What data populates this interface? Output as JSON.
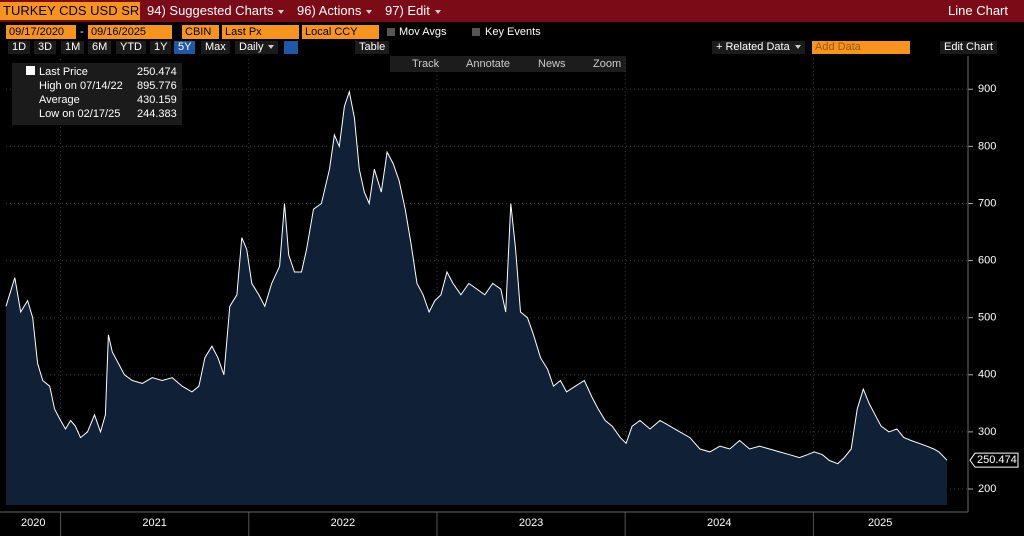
{
  "toolbar": {
    "security": "TURKEY CDS USD SR",
    "menus": [
      "94) Suggested Charts",
      "96) Actions",
      "97) Edit"
    ],
    "chart_type": "Line Chart"
  },
  "controls": {
    "start_date": "09/17/2020",
    "date_separator": "-",
    "end_date": "09/16/2025",
    "source": "CBIN",
    "field": "Last Px",
    "currency": "Local CCY",
    "mov_avgs": "Mov Avgs",
    "key_events": "Key Events"
  },
  "ranges": [
    "1D",
    "3D",
    "1M",
    "6M",
    "YTD",
    "1Y",
    "5Y",
    "Max"
  ],
  "selected_range": "5Y",
  "frequency": "Daily",
  "table": "Table",
  "related_data": "+ Related Data",
  "add_data": "Add Data",
  "edit_chart": "Edit Chart",
  "tools": [
    "Track",
    "Annotate",
    "News",
    "Zoom"
  ],
  "chart_data": {
    "type": "line",
    "legend": {
      "title": "Last Price",
      "last_value": 250.474,
      "stats": [
        {
          "label": "High on 07/14/22",
          "value": 895.776
        },
        {
          "label": "Average",
          "value": 430.159
        },
        {
          "label": "Low on 02/17/25",
          "value": 244.383
        }
      ]
    },
    "x": [
      2020.71,
      2020.757,
      2020.788,
      2020.825,
      2020.852,
      2020.878,
      2020.905,
      2020.942,
      2020.968,
      2021.0,
      2021.026,
      2021.053,
      2021.079,
      2021.106,
      2021.143,
      2021.18,
      2021.212,
      2021.238,
      2021.254,
      2021.275,
      2021.307,
      2021.339,
      2021.381,
      2021.434,
      2021.487,
      2021.54,
      2021.593,
      2021.646,
      2021.698,
      2021.735,
      2021.767,
      2021.804,
      2021.836,
      2021.868,
      2021.899,
      2021.937,
      2021.963,
      2021.989,
      2022.016,
      2022.053,
      2022.085,
      2022.122,
      2022.164,
      2022.19,
      2022.212,
      2022.243,
      2022.28,
      2022.307,
      2022.344,
      2022.386,
      2022.429,
      2022.455,
      2022.481,
      2022.508,
      2022.534,
      2022.561,
      2022.587,
      2022.614,
      2022.64,
      2022.667,
      2022.704,
      2022.735,
      2022.767,
      2022.799,
      2022.831,
      2022.862,
      2022.894,
      2022.926,
      2022.958,
      2022.989,
      2023.021,
      2023.053,
      2023.085,
      2023.127,
      2023.169,
      2023.212,
      2023.254,
      2023.296,
      2023.339,
      2023.365,
      2023.392,
      2023.418,
      2023.444,
      2023.481,
      2023.513,
      2023.55,
      2023.587,
      2023.619,
      2023.656,
      2023.688,
      2023.735,
      2023.783,
      2023.825,
      2023.857,
      2023.894,
      2023.931,
      2023.974,
      2024.005,
      2024.037,
      2024.079,
      2024.132,
      2024.185,
      2024.238,
      2024.291,
      2024.344,
      2024.397,
      2024.45,
      2024.503,
      2024.556,
      2024.608,
      2024.661,
      2024.714,
      2024.767,
      2024.82,
      2024.873,
      2024.926,
      2024.968,
      2025.005,
      2025.048,
      2025.085,
      2025.13,
      2025.164,
      2025.201,
      2025.233,
      2025.265,
      2025.296,
      2025.328,
      2025.36,
      2025.402,
      2025.444,
      2025.481,
      2025.519,
      2025.561,
      2025.603,
      2025.64,
      2025.667,
      2025.71
    ],
    "series": [
      {
        "name": "Last Price",
        "color": "#ffffff",
        "values": [
          520,
          570,
          510,
          530,
          500,
          420,
          390,
          380,
          340,
          320,
          305,
          320,
          310,
          290,
          300,
          330,
          300,
          330,
          470,
          440,
          420,
          400,
          390,
          385,
          395,
          390,
          395,
          380,
          370,
          380,
          430,
          450,
          430,
          400,
          520,
          540,
          640,
          620,
          560,
          540,
          520,
          560,
          590,
          700,
          610,
          580,
          580,
          620,
          690,
          700,
          760,
          820,
          800,
          870,
          895.776,
          850,
          760,
          720,
          700,
          760,
          720,
          790,
          770,
          740,
          690,
          630,
          560,
          540,
          510,
          530,
          540,
          580,
          560,
          540,
          560,
          550,
          540,
          560,
          550,
          510,
          700,
          620,
          510,
          500,
          470,
          430,
          410,
          380,
          390,
          370,
          380,
          390,
          360,
          340,
          320,
          310,
          290,
          280,
          310,
          320,
          305,
          320,
          310,
          300,
          290,
          270,
          265,
          275,
          270,
          285,
          270,
          275,
          270,
          265,
          260,
          255,
          260,
          265,
          260,
          250,
          244.383,
          255,
          270,
          340,
          375,
          350,
          330,
          310,
          300,
          305,
          290,
          285,
          280,
          275,
          270,
          265,
          250.474
        ]
      }
    ],
    "xlim": [
      2020.71,
      2025.71
    ],
    "xticks": [
      2021,
      2022,
      2023,
      2024,
      2025
    ],
    "year_labels": [
      "2020",
      "2021",
      "2022",
      "2023",
      "2024",
      "2025"
    ],
    "ylim": [
      172,
      960
    ],
    "yticks": [
      200,
      300,
      400,
      500,
      600,
      700,
      800,
      900
    ],
    "grid": true,
    "area_color": "#0f2037"
  }
}
